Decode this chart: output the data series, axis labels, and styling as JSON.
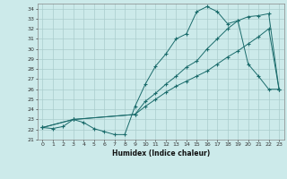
{
  "title": "",
  "xlabel": "Humidex (Indice chaleur)",
  "bg_color": "#cceaea",
  "grid_color": "#aacccc",
  "line_color": "#1a6b6b",
  "xlim": [
    -0.5,
    23.5
  ],
  "ylim": [
    21,
    34.5
  ],
  "xticks": [
    0,
    1,
    2,
    3,
    4,
    5,
    6,
    7,
    8,
    9,
    10,
    11,
    12,
    13,
    14,
    15,
    16,
    17,
    18,
    19,
    20,
    21,
    22,
    23
  ],
  "yticks": [
    21,
    22,
    23,
    24,
    25,
    26,
    27,
    28,
    29,
    30,
    31,
    32,
    33,
    34
  ],
  "line1_x": [
    0,
    1,
    2,
    3,
    4,
    5,
    6,
    7,
    8,
    9,
    10,
    11,
    12,
    13,
    14,
    15,
    16,
    17,
    18,
    19,
    20,
    21,
    22,
    23
  ],
  "line1_y": [
    22.2,
    22.1,
    22.3,
    23.0,
    22.7,
    22.1,
    21.8,
    21.5,
    21.5,
    24.3,
    26.5,
    28.3,
    29.5,
    31.0,
    31.5,
    33.7,
    34.2,
    33.7,
    32.5,
    32.8,
    28.5,
    27.3,
    26.0,
    26.0
  ],
  "line2_x": [
    0,
    3,
    9,
    10,
    11,
    12,
    13,
    14,
    15,
    16,
    17,
    18,
    19,
    20,
    21,
    22,
    23
  ],
  "line2_y": [
    22.2,
    23.0,
    23.5,
    24.3,
    25.0,
    25.7,
    26.3,
    26.8,
    27.3,
    27.8,
    28.5,
    29.2,
    29.8,
    30.5,
    31.2,
    32.0,
    26.0
  ],
  "line3_x": [
    0,
    3,
    9,
    10,
    11,
    12,
    13,
    14,
    15,
    16,
    17,
    18,
    19,
    20,
    21,
    22,
    23
  ],
  "line3_y": [
    22.2,
    23.0,
    23.5,
    24.8,
    25.6,
    26.5,
    27.3,
    28.2,
    28.8,
    30.0,
    31.0,
    32.0,
    32.8,
    33.2,
    33.3,
    33.5,
    26.0
  ]
}
